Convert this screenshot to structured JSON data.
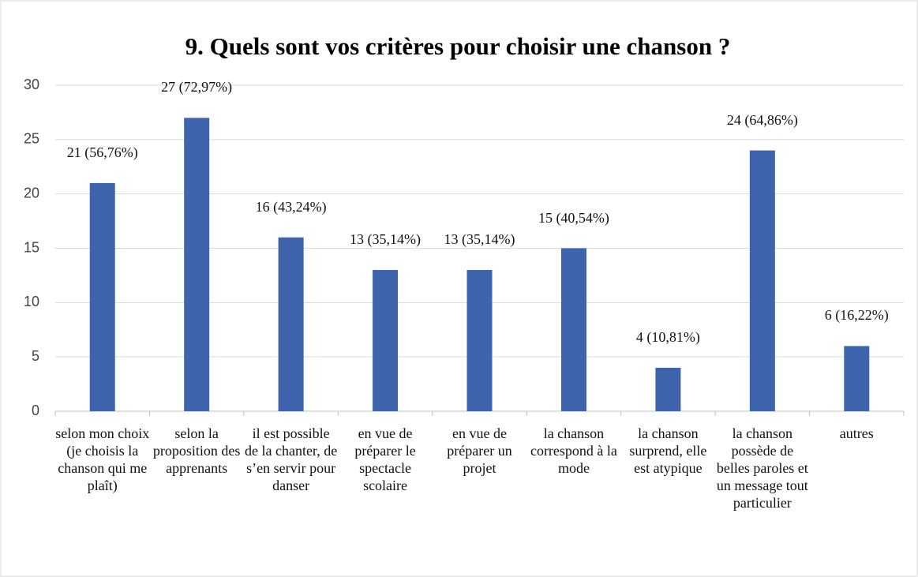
{
  "chart_data": {
    "type": "bar",
    "title": "9. Quels sont vos critères pour choisir une chanson ?",
    "categories": [
      "selon mon choix (je choisis la chanson qui me plaît)",
      "selon la proposition des apprenants",
      "il est possible de la chanter, de s’en servir pour danser",
      "en vue de préparer le spectacle scolaire",
      "en vue de préparer un projet",
      "la chanson correspond à la mode",
      "la chanson surprend, elle est atypique",
      "la chanson possède de belles paroles et un message tout particulier",
      "autres"
    ],
    "values": [
      21,
      27,
      16,
      13,
      13,
      15,
      4,
      24,
      6
    ],
    "value_labels": [
      "21 (56,76%)",
      "27 (72,97%)",
      "16 (43,24%)",
      "13 (35,14%)",
      "13 (35,14%)",
      "15 (40,54%)",
      "4 (10,81%)",
      "24 (64,86%)",
      "6 (16,22%)"
    ],
    "color": "#3e64ad",
    "ylim": [
      0,
      30
    ],
    "yticks": [
      0,
      5,
      10,
      15,
      20,
      25,
      30
    ],
    "grid": true
  }
}
